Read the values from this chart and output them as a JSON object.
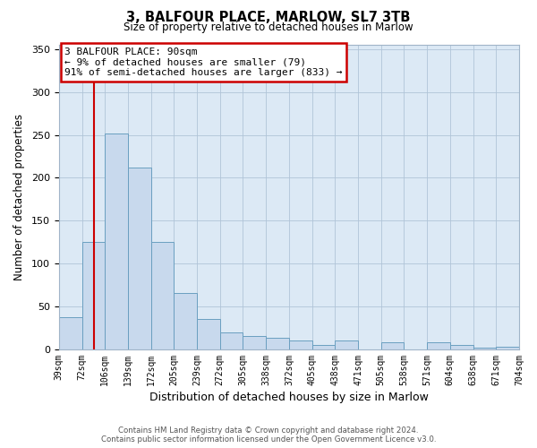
{
  "title": "3, BALFOUR PLACE, MARLOW, SL7 3TB",
  "subtitle": "Size of property relative to detached houses in Marlow",
  "xlabel": "Distribution of detached houses by size in Marlow",
  "ylabel": "Number of detached properties",
  "bar_labels": [
    "39sqm",
    "72sqm",
    "106sqm",
    "139sqm",
    "172sqm",
    "205sqm",
    "239sqm",
    "272sqm",
    "305sqm",
    "338sqm",
    "372sqm",
    "405sqm",
    "438sqm",
    "471sqm",
    "505sqm",
    "538sqm",
    "571sqm",
    "604sqm",
    "638sqm",
    "671sqm",
    "704sqm"
  ],
  "bar_values": [
    38,
    125,
    252,
    212,
    125,
    66,
    35,
    20,
    16,
    13,
    10,
    5,
    10,
    0,
    8,
    0,
    8,
    5,
    2,
    3
  ],
  "bar_color": "#c8d9ed",
  "bar_edge_color": "#6a9fc0",
  "vline_color": "#cc0000",
  "annotation_text": "3 BALFOUR PLACE: 90sqm\n← 9% of detached houses are smaller (79)\n91% of semi-detached houses are larger (833) →",
  "annotation_box_facecolor": "#ffffff",
  "annotation_box_edgecolor": "#cc0000",
  "ylim": [
    0,
    355
  ],
  "yticks": [
    0,
    50,
    100,
    150,
    200,
    250,
    300,
    350
  ],
  "plot_bg_color": "#dce9f5",
  "fig_bg_color": "#ffffff",
  "footer_line1": "Contains HM Land Registry data © Crown copyright and database right 2024.",
  "footer_line2": "Contains public sector information licensed under the Open Government Licence v3.0.",
  "bin_edges_sqm": [
    39,
    72,
    106,
    139,
    172,
    205,
    239,
    272,
    305,
    338,
    372,
    405,
    438,
    471,
    505,
    538,
    571,
    604,
    638,
    671,
    704
  ],
  "property_sqm": 90
}
